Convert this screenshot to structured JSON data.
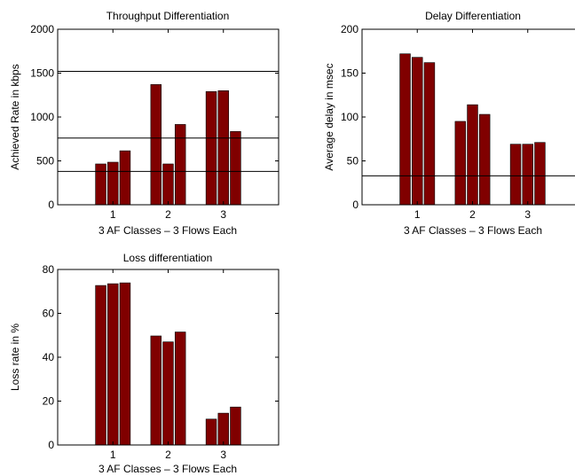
{
  "colors": {
    "bar": "#800000",
    "axis": "#000000",
    "background": "#ffffff"
  },
  "chart_data": [
    {
      "type": "bar",
      "title": "Throughput Differentiation",
      "xlabel": "3 AF Classes – 3 Flows Each",
      "ylabel": "Achieved Rate in kbps",
      "categories": [
        "1",
        "2",
        "3"
      ],
      "series": [
        {
          "values": [
            465,
            1370,
            1290
          ]
        },
        {
          "values": [
            485,
            465,
            1300
          ]
        },
        {
          "values": [
            615,
            915,
            835
          ]
        }
      ],
      "xlim": [
        0,
        4
      ],
      "ylim": [
        0,
        2000
      ],
      "yticks": [
        0,
        500,
        1000,
        1500,
        2000
      ],
      "reference_lines": [
        380,
        760,
        1520
      ],
      "grid": false
    },
    {
      "type": "bar",
      "title": "Delay Differentiation",
      "xlabel": "3 AF Classes – 3 Flows Each",
      "ylabel": "Average delay in msec",
      "categories": [
        "1",
        "2",
        "3"
      ],
      "series": [
        {
          "values": [
            172,
            95,
            69
          ]
        },
        {
          "values": [
            168,
            114,
            69
          ]
        },
        {
          "values": [
            162,
            103,
            71
          ]
        }
      ],
      "xlim": [
        0,
        4
      ],
      "ylim": [
        0,
        200
      ],
      "yticks": [
        0,
        50,
        100,
        150,
        200
      ],
      "reference_lines": [
        33
      ],
      "grid": false
    },
    {
      "type": "bar",
      "title": "Loss differentiation",
      "xlabel": "3 AF Classes – 3 Flows Each",
      "ylabel": "Loss rate in %",
      "categories": [
        "1",
        "2",
        "3"
      ],
      "series": [
        {
          "values": [
            72.7,
            49.7,
            11.8
          ]
        },
        {
          "values": [
            73.5,
            47.0,
            14.5
          ]
        },
        {
          "values": [
            73.9,
            51.5,
            17.3
          ]
        }
      ],
      "xlim": [
        0,
        4
      ],
      "ylim": [
        0,
        80
      ],
      "yticks": [
        0,
        20,
        40,
        60,
        80
      ],
      "reference_lines": [],
      "grid": false
    }
  ]
}
